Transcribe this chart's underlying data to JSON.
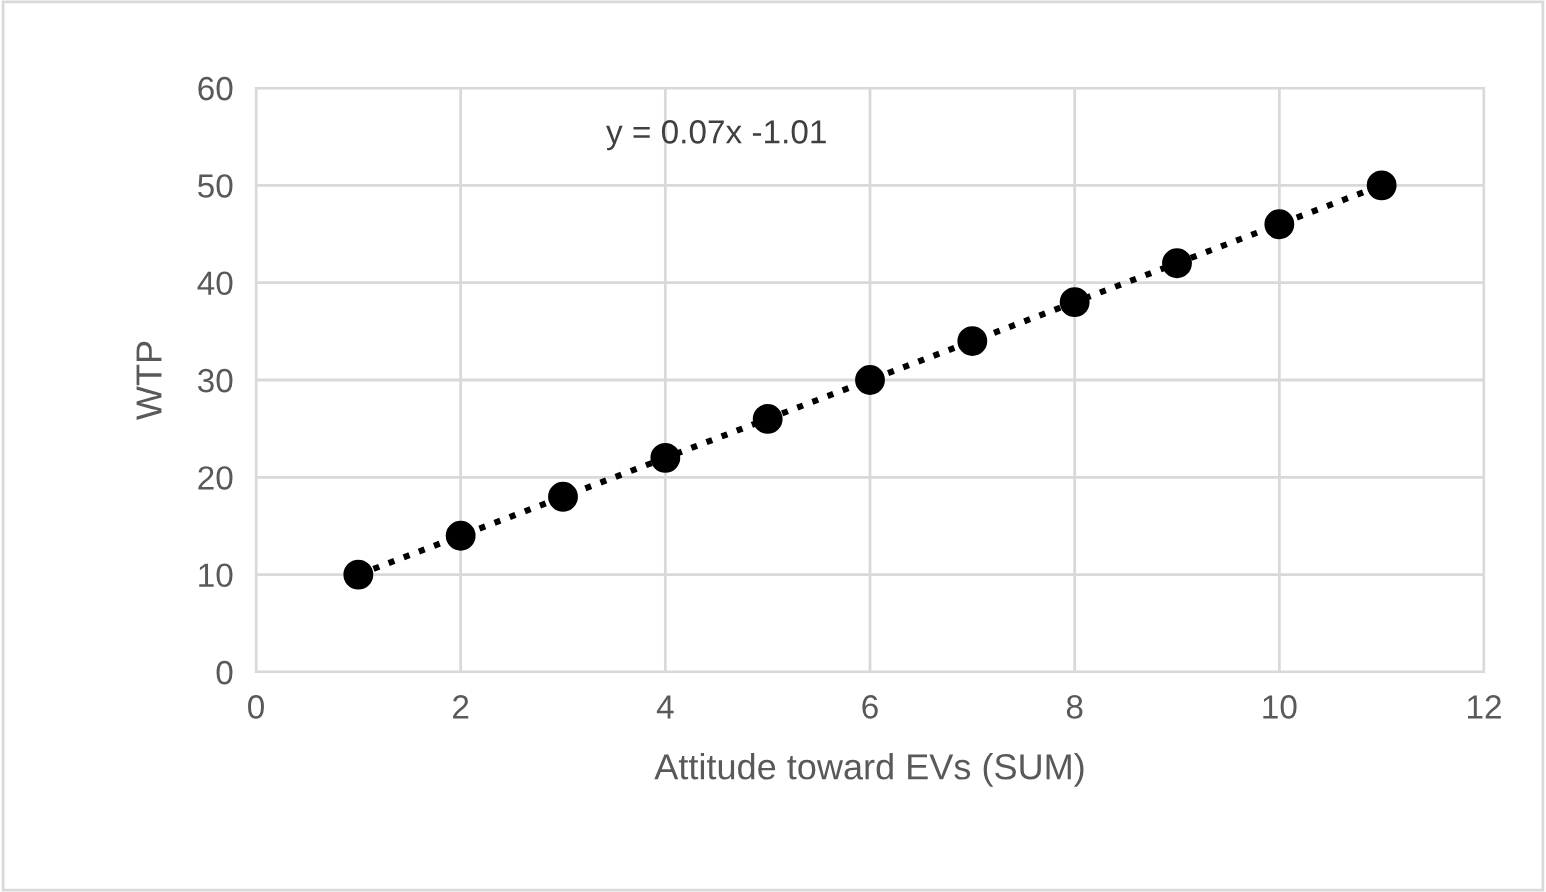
{
  "chart_data": {
    "type": "scatter",
    "xlabel": "Attitude toward EVs (SUM)",
    "ylabel": "WTP",
    "annotations": [
      "y = 0.07x -1.01"
    ],
    "series": [
      {
        "color": "#000000",
        "marker": "circle",
        "x": [
          1,
          2,
          3,
          4,
          5,
          6,
          7,
          8,
          9,
          10,
          11
        ],
        "values": [
          10,
          14,
          18,
          22,
          26,
          30,
          34,
          38,
          42,
          46,
          50
        ]
      },
      {
        "type": "line",
        "color": "#000000",
        "line_style": "dotted",
        "x": [
          1,
          11
        ],
        "values": [
          10,
          50
        ]
      }
    ],
    "xlim": [
      0,
      12
    ],
    "xticks": [
      0,
      2,
      4,
      6,
      8,
      10,
      12
    ],
    "ylim": [
      0,
      60
    ],
    "yticks": [
      0,
      10,
      20,
      30,
      40,
      50,
      60
    ],
    "grid": true,
    "legend": false
  }
}
